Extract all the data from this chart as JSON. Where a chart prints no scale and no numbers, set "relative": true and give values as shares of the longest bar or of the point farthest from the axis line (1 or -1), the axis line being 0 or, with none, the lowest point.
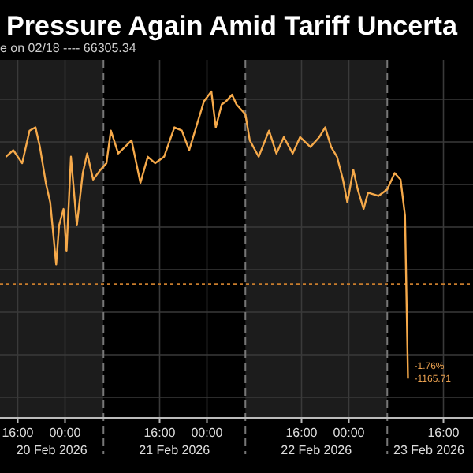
{
  "chart_data": {
    "type": "line",
    "title": "Pressure Again Amid Tariff Uncerta",
    "subtitle": "e on 02/18 ---- 66305.34",
    "relative": true,
    "x": [
      "2026-02-20T14:00",
      "2026-02-20T15:15",
      "2026-02-20T16:45",
      "2026-02-20T18:00",
      "2026-02-20T19:00",
      "2026-02-20T19:45",
      "2026-02-20T20:45",
      "2026-02-20T21:30",
      "2026-02-20T22:30",
      "2026-02-20T23:00",
      "2026-02-20T23:45",
      "2026-02-21T00:15",
      "2026-02-21T01:00",
      "2026-02-21T02:00",
      "2026-02-21T03:00",
      "2026-02-21T03:45",
      "2026-02-21T04:45",
      "2026-02-21T06:00",
      "2026-02-21T07:00",
      "2026-02-21T07:45",
      "2026-02-21T09:00",
      "2026-02-21T11:15",
      "2026-02-21T12:45",
      "2026-02-21T14:00",
      "2026-02-21T15:15",
      "2026-02-21T16:45",
      "2026-02-21T18:30",
      "2026-02-21T19:45",
      "2026-02-21T21:00",
      "2026-02-21T22:30",
      "2026-02-21T23:30",
      "2026-02-22T00:45",
      "2026-02-22T01:30",
      "2026-02-22T02:30",
      "2026-02-22T03:15",
      "2026-02-22T04:15",
      "2026-02-22T05:00",
      "2026-02-22T06:30",
      "2026-02-22T07:15",
      "2026-02-22T08:45",
      "2026-02-22T10:30",
      "2026-02-22T11:45",
      "2026-02-22T13:00",
      "2026-02-22T14:30",
      "2026-02-22T15:45",
      "2026-02-22T17:30",
      "2026-02-22T19:00",
      "2026-02-22T20:00",
      "2026-02-22T21:00",
      "2026-02-22T22:00",
      "2026-02-22T23:00",
      "2026-02-22T23:45",
      "2026-02-23T00:45",
      "2026-02-23T01:30",
      "2026-02-23T02:30",
      "2026-02-23T03:15",
      "2026-02-23T05:00",
      "2026-02-23T06:30",
      "2026-02-23T07:45",
      "2026-02-23T08:45",
      "2026-02-23T09:30",
      "2026-02-23T10:00"
    ],
    "series": [
      {
        "color": "#f5a94a",
        "values": [
          0.8,
          0.82,
          0.78,
          0.88,
          0.89,
          0.83,
          0.72,
          0.66,
          0.47,
          0.59,
          0.64,
          0.51,
          0.8,
          0.59,
          0.75,
          0.81,
          0.73,
          0.76,
          0.78,
          0.88,
          0.81,
          0.85,
          0.72,
          0.8,
          0.78,
          0.8,
          0.89,
          0.88,
          0.82,
          0.91,
          0.97,
          1.0,
          0.89,
          0.96,
          0.97,
          0.99,
          0.96,
          0.93,
          0.85,
          0.8,
          0.88,
          0.81,
          0.86,
          0.81,
          0.86,
          0.83,
          0.86,
          0.89,
          0.83,
          0.8,
          0.73,
          0.66,
          0.76,
          0.7,
          0.64,
          0.69,
          0.68,
          0.7,
          0.75,
          0.73,
          0.62,
          0.12
        ]
      }
    ],
    "xlim": [
      "2026-02-20T13:00",
      "2026-02-23T21:00"
    ],
    "xticks": [
      {
        "value": "2026-02-20T16:00",
        "label": "16:00"
      },
      {
        "value": "2026-02-21T00:00",
        "label": "00:00"
      },
      {
        "value": "2026-02-21T16:00",
        "label": "16:00"
      },
      {
        "value": "2026-02-22T00:00",
        "label": "00:00"
      },
      {
        "value": "2026-02-22T16:00",
        "label": "16:00"
      },
      {
        "value": "2026-02-23T00:00",
        "label": "00:00"
      },
      {
        "value": "2026-02-23T16:00",
        "label": "16:00"
      }
    ],
    "bands": [
      {
        "axis": "x",
        "from": "2026-02-20T13:00",
        "to": "2026-02-21T06:30",
        "label": "20 Feb 2026",
        "color": "#1c1c1c"
      },
      {
        "axis": "x",
        "from": "2026-02-21T06:30",
        "to": "2026-02-22T06:30",
        "label": "21 Feb 2026",
        "color": "#000000"
      },
      {
        "axis": "x",
        "from": "2026-02-22T06:30",
        "to": "2026-02-23T06:30",
        "label": "22 Feb 2026",
        "color": "#1c1c1c"
      },
      {
        "axis": "x",
        "from": "2026-02-23T06:30",
        "to": "2026-02-23T21:00",
        "label": "23 Feb 2026",
        "color": "#000000"
      }
    ],
    "ref_lines": [
      {
        "axis": "y",
        "value": 0.41,
        "color": "#c87c2c",
        "line_style": "dotted"
      },
      {
        "axis": "x",
        "value": "2026-02-21T06:30",
        "color": "#777777",
        "line_style": "dashed"
      },
      {
        "axis": "x",
        "value": "2026-02-22T06:30",
        "color": "#777777",
        "line_style": "dashed"
      },
      {
        "axis": "x",
        "value": "2026-02-23T06:30",
        "color": "#777777",
        "line_style": "dashed"
      }
    ],
    "annotations": [
      {
        "text": "-1.76%",
        "x": "2026-02-23T10:00",
        "y": 0.12
      },
      {
        "text": "-1165.71",
        "x": "2026-02-23T10:00",
        "y": 0.12
      }
    ],
    "grid": true,
    "line_style": "solid",
    "marker": "none"
  }
}
